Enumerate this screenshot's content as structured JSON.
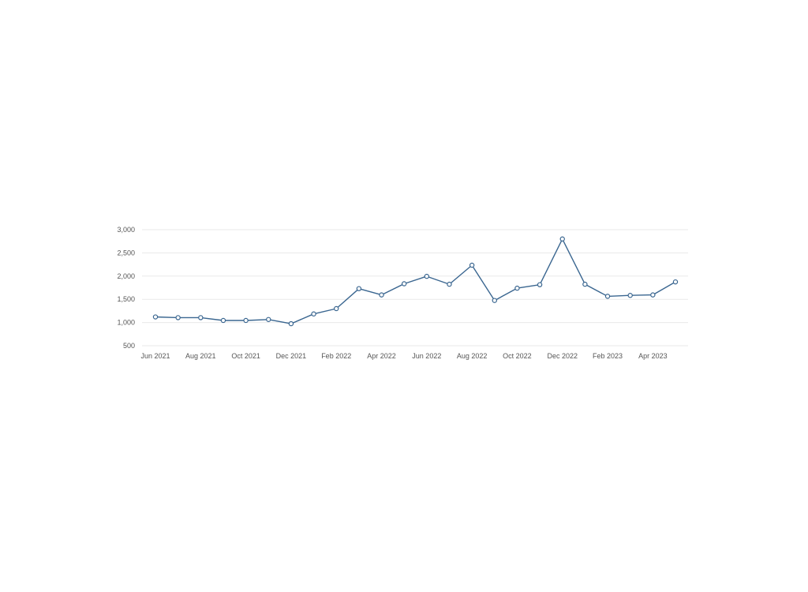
{
  "chart_data": {
    "type": "line",
    "grid": true,
    "ylim": [
      500,
      3000
    ],
    "y_ticks": [
      {
        "value": 3000,
        "label": "3,000"
      },
      {
        "value": 2500,
        "label": "2,500"
      },
      {
        "value": 2000,
        "label": "2,000"
      },
      {
        "value": 1500,
        "label": "1,500"
      },
      {
        "value": 1000,
        "label": "1,000"
      },
      {
        "value": 500,
        "label": "500"
      }
    ],
    "x": [
      "Jun 2021",
      "Jul 2021",
      "Aug 2021",
      "Sep 2021",
      "Oct 2021",
      "Nov 2021",
      "Dec 2021",
      "Jan 2022",
      "Feb 2022",
      "Mar 2022",
      "Apr 2022",
      "May 2022",
      "Jun 2022",
      "Jul 2022",
      "Aug 2022",
      "Sep 2022",
      "Oct 2022",
      "Nov 2022",
      "Dec 2022",
      "Jan 2023",
      "Feb 2023",
      "Mar 2023",
      "Apr 2023",
      "May 2023"
    ],
    "x_tick_labels": [
      "Jun 2021",
      "Aug 2021",
      "Oct 2021",
      "Dec 2021",
      "Feb 2022",
      "Apr 2022",
      "Jun 2022",
      "Aug 2022",
      "Oct 2022",
      "Dec 2022",
      "Feb 2023",
      "Apr 2023"
    ],
    "series": [
      {
        "values": [
          1120,
          1105,
          1105,
          1045,
          1045,
          1065,
          975,
          1185,
          1300,
          1730,
          1595,
          1835,
          1995,
          1825,
          2235,
          1475,
          1740,
          1815,
          2800,
          1825,
          1565,
          1585,
          1595,
          1875
        ],
        "color": "#3a6690"
      }
    ]
  }
}
